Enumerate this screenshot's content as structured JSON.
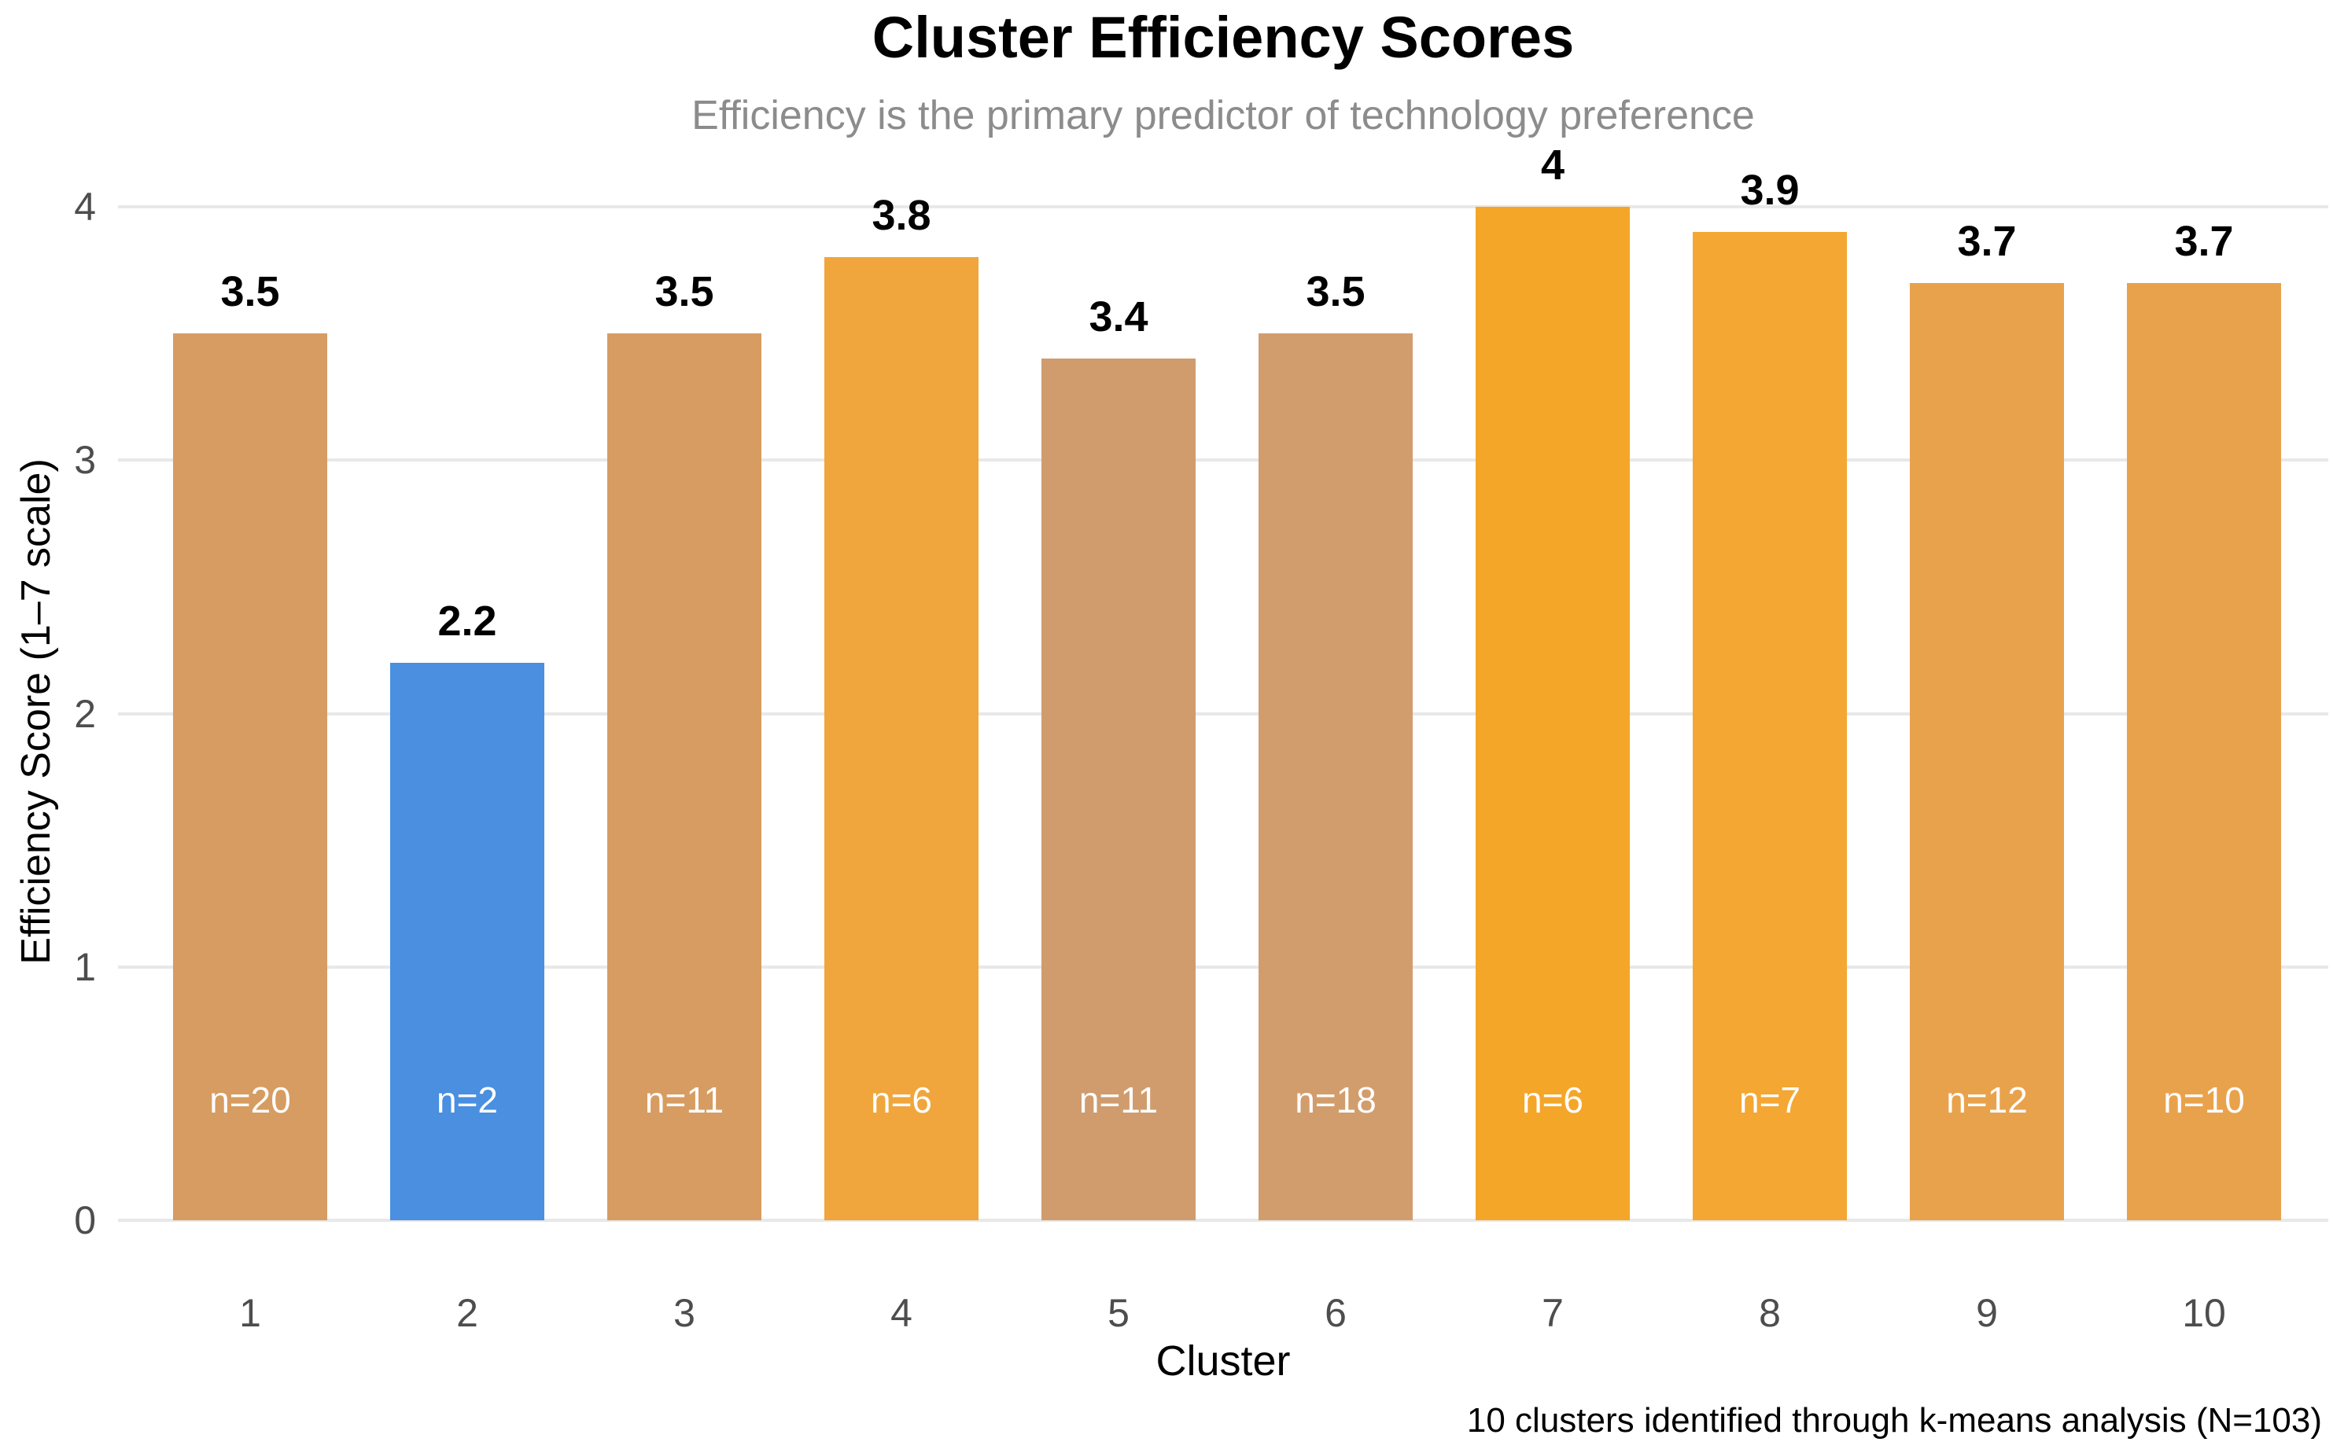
{
  "chart_data": {
    "type": "bar",
    "title": "Cluster Efficiency Scores",
    "subtitle": "Efficiency is the primary predictor of technology preference",
    "xlabel": "Cluster",
    "ylabel": "Efficiency Score (1–7 scale)",
    "caption": "10 clusters identified through k-means analysis (N=103)",
    "categories": [
      "1",
      "2",
      "3",
      "4",
      "5",
      "6",
      "7",
      "8",
      "9",
      "10"
    ],
    "values": [
      3.5,
      2.2,
      3.5,
      3.8,
      3.4,
      3.5,
      4,
      3.9,
      3.7,
      3.7
    ],
    "value_labels": [
      "3.5",
      "2.2",
      "3.5",
      "3.8",
      "3.4",
      "3.5",
      "4",
      "3.9",
      "3.7",
      "3.7"
    ],
    "cluster_sizes": [
      "n=20",
      "n=2",
      "n=11",
      "n=6",
      "n=11",
      "n=18",
      "n=6",
      "n=7",
      "n=12",
      "n=10"
    ],
    "bar_colors": [
      "#D79C61",
      "#4A8FE0",
      "#D79C61",
      "#F0A63C",
      "#D09C6E",
      "#D29D6D",
      "#F4A629",
      "#F4A733",
      "#E9A24C",
      "#E9A24C"
    ],
    "ylim": [
      0,
      4
    ],
    "yticks": [
      "0",
      "1",
      "2",
      "3",
      "4"
    ],
    "grid": "horizontal",
    "legend": "none",
    "colors": {
      "highlight_blue": "#4A8FE0",
      "orange_max": "#F4A629",
      "tan_base": "#D79C61",
      "gridline": "#E8E8E8",
      "tick_label": "#4D4D4D",
      "subtitle_text": "#8C8C8C",
      "title_text": "#000000",
      "count_label_text": "#FFFFFF",
      "background": "#FFFFFF"
    }
  }
}
